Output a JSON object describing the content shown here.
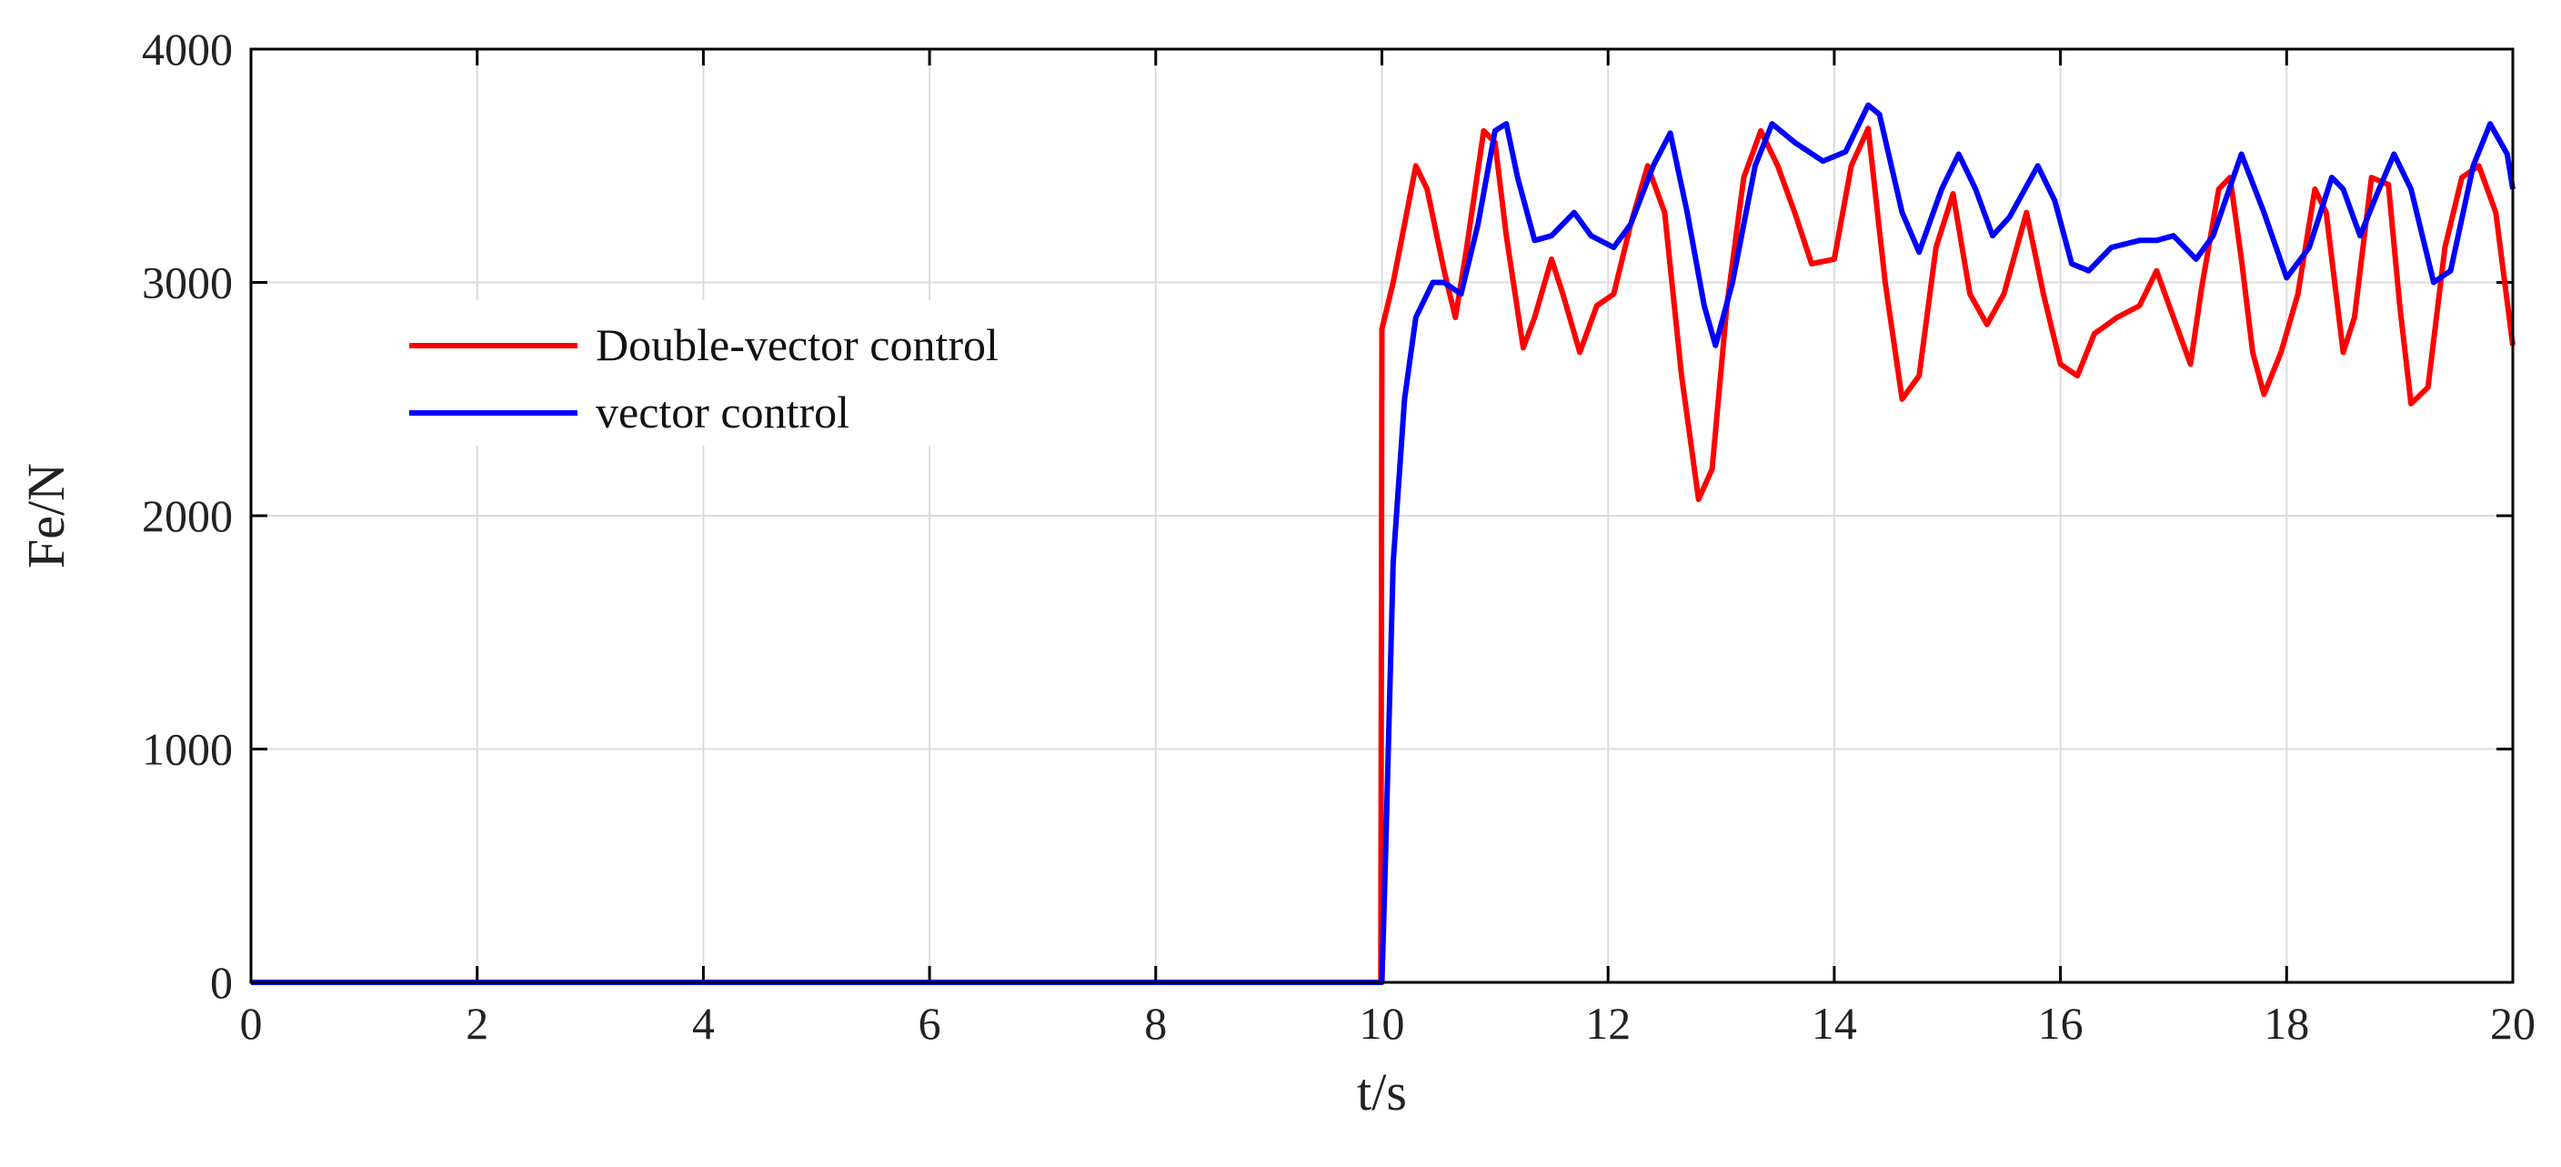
{
  "chart_data": {
    "type": "line",
    "title": "",
    "xlabel": "t/s",
    "ylabel": "Fe/N",
    "xlim": [
      0,
      20
    ],
    "ylim": [
      0,
      4000
    ],
    "xticks": [
      0,
      2,
      4,
      6,
      8,
      10,
      12,
      14,
      16,
      18,
      20
    ],
    "yticks": [
      0,
      1000,
      2000,
      3000,
      4000
    ],
    "grid": true,
    "legend_position": "upper-left",
    "series": [
      {
        "name": "Double-vector control",
        "color": "#ff0000",
        "points": [
          [
            0,
            0
          ],
          [
            9.99,
            0
          ],
          [
            10.0,
            2800
          ],
          [
            10.1,
            3000
          ],
          [
            10.2,
            3250
          ],
          [
            10.3,
            3500
          ],
          [
            10.4,
            3400
          ],
          [
            10.55,
            3050
          ],
          [
            10.65,
            2850
          ],
          [
            10.75,
            3150
          ],
          [
            10.9,
            3650
          ],
          [
            11.0,
            3600
          ],
          [
            11.1,
            3200
          ],
          [
            11.25,
            2720
          ],
          [
            11.35,
            2850
          ],
          [
            11.5,
            3100
          ],
          [
            11.6,
            2950
          ],
          [
            11.75,
            2700
          ],
          [
            11.9,
            2900
          ],
          [
            12.05,
            2950
          ],
          [
            12.2,
            3250
          ],
          [
            12.35,
            3500
          ],
          [
            12.5,
            3300
          ],
          [
            12.65,
            2600
          ],
          [
            12.8,
            2070
          ],
          [
            12.92,
            2200
          ],
          [
            13.05,
            2900
          ],
          [
            13.2,
            3450
          ],
          [
            13.35,
            3650
          ],
          [
            13.5,
            3500
          ],
          [
            13.65,
            3300
          ],
          [
            13.8,
            3080
          ],
          [
            14.0,
            3100
          ],
          [
            14.15,
            3500
          ],
          [
            14.3,
            3660
          ],
          [
            14.45,
            3000
          ],
          [
            14.6,
            2500
          ],
          [
            14.75,
            2600
          ],
          [
            14.9,
            3150
          ],
          [
            15.05,
            3380
          ],
          [
            15.2,
            2950
          ],
          [
            15.35,
            2820
          ],
          [
            15.5,
            2950
          ],
          [
            15.7,
            3300
          ],
          [
            15.85,
            2950
          ],
          [
            16.0,
            2650
          ],
          [
            16.15,
            2600
          ],
          [
            16.3,
            2780
          ],
          [
            16.5,
            2850
          ],
          [
            16.7,
            2900
          ],
          [
            16.85,
            3050
          ],
          [
            17.0,
            2850
          ],
          [
            17.15,
            2650
          ],
          [
            17.25,
            2980
          ],
          [
            17.4,
            3400
          ],
          [
            17.5,
            3450
          ],
          [
            17.6,
            3100
          ],
          [
            17.7,
            2700
          ],
          [
            17.8,
            2520
          ],
          [
            17.95,
            2700
          ],
          [
            18.1,
            2950
          ],
          [
            18.25,
            3400
          ],
          [
            18.35,
            3300
          ],
          [
            18.5,
            2700
          ],
          [
            18.6,
            2850
          ],
          [
            18.75,
            3450
          ],
          [
            18.9,
            3420
          ],
          [
            19.0,
            2900
          ],
          [
            19.1,
            2480
          ],
          [
            19.25,
            2550
          ],
          [
            19.4,
            3150
          ],
          [
            19.55,
            3450
          ],
          [
            19.7,
            3500
          ],
          [
            19.85,
            3300
          ],
          [
            20.0,
            2730
          ]
        ]
      },
      {
        "name": "vector control",
        "color": "#0000ff",
        "points": [
          [
            0,
            0
          ],
          [
            10.0,
            0
          ],
          [
            10.03,
            500
          ],
          [
            10.1,
            1800
          ],
          [
            10.2,
            2500
          ],
          [
            10.3,
            2850
          ],
          [
            10.45,
            3000
          ],
          [
            10.55,
            3000
          ],
          [
            10.7,
            2950
          ],
          [
            10.85,
            3250
          ],
          [
            11.0,
            3650
          ],
          [
            11.1,
            3680
          ],
          [
            11.2,
            3450
          ],
          [
            11.35,
            3180
          ],
          [
            11.5,
            3200
          ],
          [
            11.7,
            3300
          ],
          [
            11.85,
            3200
          ],
          [
            12.05,
            3150
          ],
          [
            12.2,
            3250
          ],
          [
            12.4,
            3500
          ],
          [
            12.55,
            3640
          ],
          [
            12.7,
            3300
          ],
          [
            12.85,
            2900
          ],
          [
            12.95,
            2730
          ],
          [
            13.1,
            3000
          ],
          [
            13.3,
            3500
          ],
          [
            13.45,
            3680
          ],
          [
            13.65,
            3600
          ],
          [
            13.9,
            3520
          ],
          [
            14.1,
            3560
          ],
          [
            14.3,
            3760
          ],
          [
            14.4,
            3720
          ],
          [
            14.6,
            3300
          ],
          [
            14.75,
            3130
          ],
          [
            14.95,
            3400
          ],
          [
            15.1,
            3550
          ],
          [
            15.25,
            3400
          ],
          [
            15.4,
            3200
          ],
          [
            15.55,
            3280
          ],
          [
            15.8,
            3500
          ],
          [
            15.95,
            3350
          ],
          [
            16.1,
            3080
          ],
          [
            16.25,
            3050
          ],
          [
            16.45,
            3150
          ],
          [
            16.7,
            3180
          ],
          [
            16.85,
            3180
          ],
          [
            17.0,
            3200
          ],
          [
            17.2,
            3100
          ],
          [
            17.35,
            3200
          ],
          [
            17.6,
            3550
          ],
          [
            17.8,
            3300
          ],
          [
            18.0,
            3020
          ],
          [
            18.2,
            3150
          ],
          [
            18.4,
            3450
          ],
          [
            18.5,
            3400
          ],
          [
            18.65,
            3200
          ],
          [
            18.8,
            3380
          ],
          [
            18.95,
            3550
          ],
          [
            19.1,
            3400
          ],
          [
            19.3,
            3000
          ],
          [
            19.45,
            3050
          ],
          [
            19.65,
            3500
          ],
          [
            19.8,
            3680
          ],
          [
            19.95,
            3550
          ],
          [
            20.0,
            3400
          ]
        ]
      }
    ]
  }
}
